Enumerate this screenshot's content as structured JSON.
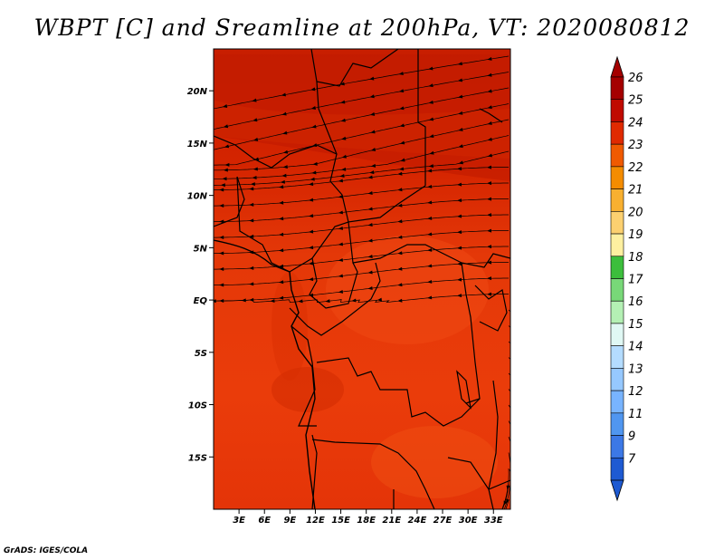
{
  "title": "WBPT [C] and Sreamline at 200hPa, VT: 2020080812",
  "credit": "GrADS: IGES/COLA",
  "map": {
    "field": "WBPT [C]",
    "level": "200hPa",
    "valid_time": "2020080812",
    "lon_range": [
      0,
      35
    ],
    "lat_range": [
      -20,
      24
    ],
    "lat_ticks": [
      {
        "value": 20,
        "label": "20N"
      },
      {
        "value": 15,
        "label": "15N"
      },
      {
        "value": 10,
        "label": "10N"
      },
      {
        "value": 5,
        "label": "5N"
      },
      {
        "value": 0,
        "label": "EQ"
      },
      {
        "value": -5,
        "label": "5S"
      },
      {
        "value": -10,
        "label": "10S"
      },
      {
        "value": -15,
        "label": "15S"
      }
    ],
    "lon_ticks": [
      {
        "value": 3,
        "label": "3E"
      },
      {
        "value": 6,
        "label": "6E"
      },
      {
        "value": 9,
        "label": "9E"
      },
      {
        "value": 12,
        "label": "12E"
      },
      {
        "value": 15,
        "label": "15E"
      },
      {
        "value": 18,
        "label": "18E"
      },
      {
        "value": 21,
        "label": "21E"
      },
      {
        "value": 24,
        "label": "24E"
      },
      {
        "value": 27,
        "label": "27E"
      },
      {
        "value": 30,
        "label": "30E"
      },
      {
        "value": 33,
        "label": "33E"
      }
    ]
  },
  "colorbar": [
    {
      "label": "26",
      "color": "#a50000"
    },
    {
      "label": "25",
      "color": "#c00a00"
    },
    {
      "label": "24",
      "color": "#e02a00"
    },
    {
      "label": "23",
      "color": "#f05a00"
    },
    {
      "label": "22",
      "color": "#f48c00"
    },
    {
      "label": "21",
      "color": "#f8b030"
    },
    {
      "label": "20",
      "color": "#fcd070"
    },
    {
      "label": "19",
      "color": "#fef0a0"
    },
    {
      "label": "18",
      "color": "#3cbe3c"
    },
    {
      "label": "17",
      "color": "#78d878"
    },
    {
      "label": "16",
      "color": "#b4f0b4"
    },
    {
      "label": "15",
      "color": "#e0f8f4"
    },
    {
      "label": "14",
      "color": "#b4dcff"
    },
    {
      "label": "13",
      "color": "#96c8ff"
    },
    {
      "label": "12",
      "color": "#78b4ff"
    },
    {
      "label": "11",
      "color": "#5096f0"
    },
    {
      "label": "9",
      "color": "#3c78e6"
    },
    {
      "label": "7",
      "color": "#1e5ad2"
    }
  ],
  "colors": {
    "field_base": "#e83a0a",
    "field_north": "#c81e00",
    "field_light": "#f04a10",
    "streamline": "#000000"
  }
}
